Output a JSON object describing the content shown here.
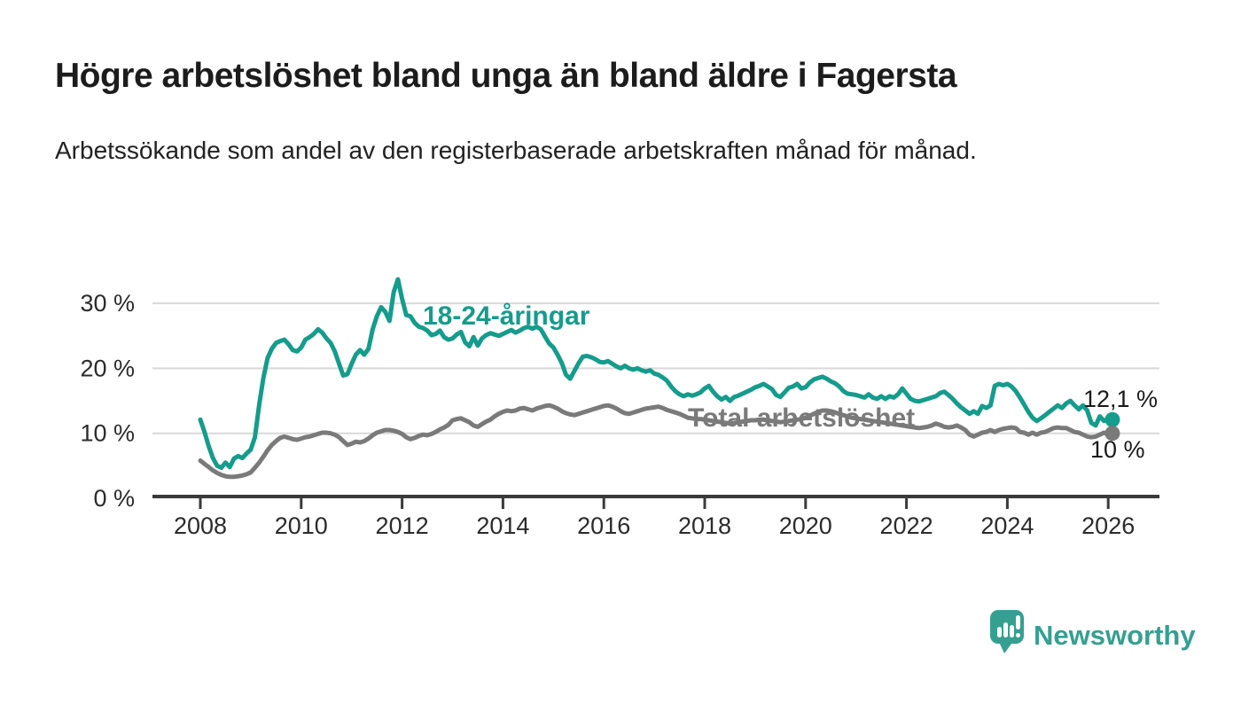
{
  "header": {
    "title": "Högre arbetslöshet bland unga än bland äldre i Fagersta",
    "subtitle": "Arbetssökande som andel av den registerbaserade arbetskraften månad för månad."
  },
  "chart_data": {
    "type": "line",
    "x_start_year": 2008,
    "points_per_year": 12,
    "x_end": "2026-02",
    "xlim": [
      2007,
      2027
    ],
    "ylim": [
      0,
      35
    ],
    "grid": "horizontal",
    "x_ticks": [
      2008,
      2010,
      2012,
      2014,
      2016,
      2018,
      2020,
      2022,
      2024,
      2026
    ],
    "y_ticks": [
      {
        "value": 0,
        "label": "0 %"
      },
      {
        "value": 10,
        "label": "10 %"
      },
      {
        "value": 20,
        "label": "20 %"
      },
      {
        "value": 30,
        "label": "30 %"
      }
    ],
    "series": [
      {
        "name": "18-24-åringar",
        "color": "#149c8c",
        "end_label": "12,1 %",
        "end_value": 12.1,
        "values": [
          12.1,
          10.2,
          8.0,
          6.2,
          5.0,
          4.7,
          5.5,
          4.8,
          6.1,
          6.5,
          6.2,
          6.9,
          7.5,
          9.4,
          14.4,
          18.5,
          21.6,
          23.0,
          23.9,
          24.2,
          24.4,
          23.7,
          22.8,
          22.6,
          23.2,
          24.4,
          24.8,
          25.3,
          26.0,
          25.5,
          24.6,
          23.9,
          22.6,
          20.7,
          18.9,
          19.1,
          20.7,
          22.1,
          22.8,
          22.1,
          23.0,
          26.0,
          28.0,
          29.4,
          28.7,
          27.3,
          31.7,
          33.7,
          30.7,
          28.2,
          28.0,
          27.0,
          26.4,
          26.2,
          25.8,
          25.1,
          25.3,
          25.8,
          24.8,
          24.4,
          24.6,
          25.2,
          25.6,
          24.0,
          23.4,
          24.8,
          23.5,
          24.6,
          25.1,
          25.4,
          25.2,
          25.0,
          25.3,
          25.6,
          25.9,
          25.5,
          25.8,
          26.2,
          26.4,
          26.1,
          26.4,
          26.0,
          24.9,
          23.8,
          23.2,
          22.1,
          20.8,
          19.0,
          18.4,
          19.6,
          20.8,
          21.8,
          21.9,
          21.7,
          21.4,
          21.0,
          20.9,
          21.1,
          20.7,
          20.3,
          20.0,
          20.4,
          20.0,
          19.8,
          20.0,
          19.7,
          19.5,
          19.7,
          19.2,
          19.0,
          18.6,
          18.1,
          17.2,
          16.5,
          16.0,
          15.7,
          16.0,
          15.8,
          16.0,
          16.3,
          16.9,
          17.3,
          16.4,
          15.7,
          15.2,
          15.6,
          15.0,
          15.6,
          15.8,
          16.1,
          16.4,
          16.7,
          17.1,
          17.3,
          17.6,
          17.2,
          16.8,
          15.9,
          15.6,
          16.3,
          17.0,
          17.2,
          17.6,
          16.9,
          17.1,
          17.8,
          18.3,
          18.5,
          18.7,
          18.4,
          18.0,
          17.7,
          17.2,
          16.5,
          16.1,
          16.0,
          15.9,
          15.7,
          15.5,
          16.0,
          15.5,
          15.3,
          15.7,
          15.3,
          15.7,
          15.5,
          16.0,
          16.9,
          16.1,
          15.3,
          15.0,
          14.9,
          15.1,
          15.3,
          15.5,
          15.7,
          16.2,
          16.4,
          15.9,
          15.3,
          14.6,
          14.0,
          13.5,
          13.0,
          13.4,
          13.0,
          14.2,
          13.9,
          14.3,
          17.3,
          17.6,
          17.4,
          17.6,
          17.2,
          16.5,
          15.5,
          14.4,
          13.3,
          12.4,
          11.9,
          12.3,
          12.8,
          13.3,
          13.8,
          14.3,
          13.9,
          14.6,
          15.0,
          14.3,
          13.7,
          14.3,
          13.5,
          11.6,
          11.2,
          12.6,
          11.9,
          12.3,
          12.1
        ]
      },
      {
        "name": "Total arbetslöshet",
        "color": "#7a7a7a",
        "end_label": "10 %",
        "end_value": 10,
        "values": [
          5.8,
          5.3,
          4.8,
          4.3,
          3.9,
          3.6,
          3.4,
          3.3,
          3.3,
          3.4,
          3.5,
          3.7,
          4.0,
          4.7,
          5.5,
          6.4,
          7.4,
          8.2,
          8.8,
          9.3,
          9.5,
          9.3,
          9.1,
          9.0,
          9.2,
          9.4,
          9.5,
          9.7,
          9.9,
          10.1,
          10.1,
          10.0,
          9.8,
          9.4,
          8.8,
          8.2,
          8.4,
          8.7,
          8.6,
          8.8,
          9.2,
          9.7,
          10.1,
          10.3,
          10.5,
          10.5,
          10.4,
          10.2,
          9.9,
          9.4,
          9.1,
          9.3,
          9.6,
          9.8,
          9.7,
          9.9,
          10.2,
          10.6,
          10.9,
          11.3,
          12.0,
          12.2,
          12.3,
          12.0,
          11.7,
          11.2,
          11.0,
          11.4,
          11.8,
          12.1,
          12.6,
          13.0,
          13.3,
          13.5,
          13.4,
          13.5,
          13.8,
          13.9,
          13.7,
          13.5,
          13.8,
          14.0,
          14.2,
          14.3,
          14.1,
          13.8,
          13.4,
          13.1,
          12.9,
          12.8,
          13.0,
          13.2,
          13.4,
          13.6,
          13.8,
          14.0,
          14.2,
          14.3,
          14.1,
          13.8,
          13.4,
          13.1,
          13.0,
          13.2,
          13.4,
          13.6,
          13.8,
          13.9,
          14.0,
          14.1,
          13.9,
          13.6,
          13.4,
          13.2,
          13.0,
          12.7,
          12.4,
          12.3,
          12.2,
          12.2,
          12.1,
          12.0,
          11.9,
          11.8,
          11.7,
          11.6,
          11.5,
          11.6,
          11.7,
          11.8,
          11.9,
          12.0,
          12.0,
          12.1,
          12.1,
          12.0,
          11.9,
          11.8,
          11.7,
          11.8,
          11.9,
          12.0,
          12.1,
          12.2,
          12.4,
          12.7,
          13.0,
          13.3,
          13.5,
          13.5,
          13.4,
          13.2,
          13.0,
          12.8,
          12.6,
          12.4,
          12.3,
          12.2,
          12.1,
          12.0,
          11.9,
          11.8,
          11.7,
          11.6,
          11.5,
          11.4,
          11.3,
          11.2,
          11.1,
          11.0,
          10.9,
          10.8,
          10.9,
          11.0,
          11.2,
          11.5,
          11.3,
          11.0,
          10.9,
          11.0,
          11.2,
          10.9,
          10.5,
          9.8,
          9.5,
          9.8,
          10.1,
          10.2,
          10.5,
          10.2,
          10.5,
          10.7,
          10.8,
          10.9,
          10.8,
          10.2,
          10.1,
          9.8,
          10.1,
          9.8,
          10.1,
          10.2,
          10.5,
          10.8,
          10.9,
          10.8,
          10.8,
          10.5,
          10.2,
          10.1,
          9.8,
          9.5,
          9.4,
          9.5,
          9.8,
          10.1,
          9.8,
          10.0
        ]
      }
    ],
    "colors": {
      "grid": "#d9d9d9",
      "axis": "#3a3a3a",
      "text": "#2b2b2b"
    }
  },
  "branding": {
    "logo_text": "Newsworthy",
    "logo_color": "#35a091"
  }
}
